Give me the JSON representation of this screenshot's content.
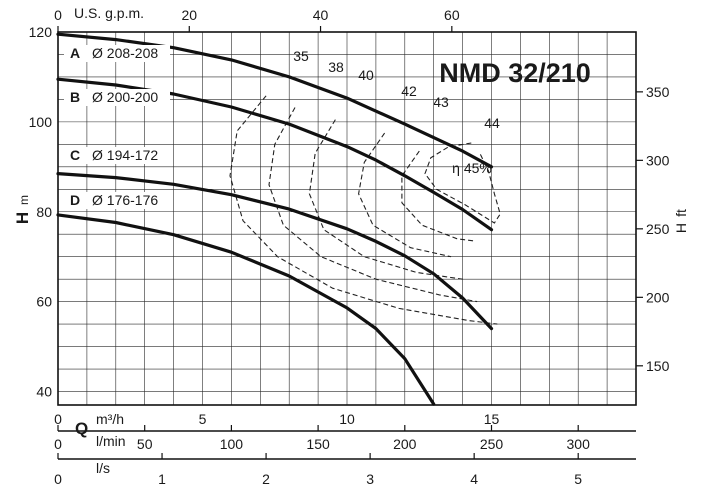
{
  "chart_data": {
    "type": "line",
    "title": "NMD 32/210",
    "axes": {
      "x_primary": {
        "label": "Q",
        "unit": "m³/h",
        "range": [
          0,
          20
        ],
        "ticks": [
          0,
          5,
          10,
          15
        ]
      },
      "y_left": {
        "label": "H",
        "unit": "m",
        "range": [
          37,
          120
        ],
        "ticks": [
          40,
          60,
          80,
          100,
          120
        ]
      },
      "y_right": {
        "label": "H",
        "unit": "ft",
        "ticks": [
          150,
          200,
          250,
          300,
          350
        ]
      },
      "x_top": {
        "label": "U.S. g.p.m.",
        "ticks": [
          0,
          20,
          40,
          60
        ]
      },
      "x_lmin": {
        "label": "l/min",
        "ticks": [
          0,
          50,
          100,
          150,
          200,
          250,
          300
        ]
      },
      "x_ls": {
        "label": "l/s",
        "ticks": [
          0,
          1,
          2,
          3,
          4,
          5
        ]
      }
    },
    "grid": true,
    "series": [
      {
        "name": "A",
        "diameter": "Ø 208-208",
        "x": [
          0,
          2,
          4,
          6,
          8,
          10,
          12,
          14,
          15
        ],
        "y": [
          119.5,
          118.3,
          116.5,
          113.8,
          110,
          105.3,
          99.5,
          93.5,
          90
        ]
      },
      {
        "name": "B",
        "diameter": "Ø 200-200",
        "x": [
          0,
          2,
          4,
          6,
          8,
          10,
          11,
          12,
          13,
          14,
          15
        ],
        "y": [
          109.5,
          108.2,
          106.2,
          103.3,
          99.5,
          94.5,
          91.5,
          88,
          84.3,
          80.5,
          76
        ]
      },
      {
        "name": "C",
        "diameter": "Ø 194-172",
        "x": [
          0,
          2,
          4,
          6,
          8,
          10,
          11,
          12,
          13,
          14,
          15
        ],
        "y": [
          88.5,
          87.6,
          86.1,
          83.8,
          80.6,
          76.2,
          73.4,
          70.2,
          66.2,
          60.8,
          54
        ]
      },
      {
        "name": "D",
        "diameter": "Ø 176-176",
        "x": [
          0,
          2,
          4,
          6,
          8,
          10,
          11,
          12,
          13
        ],
        "y": [
          79.3,
          77.6,
          74.9,
          71,
          65.7,
          58.6,
          54,
          47.3,
          37.2
        ]
      }
    ],
    "efficiency_labels": [
      "35",
      "38",
      "40",
      "42",
      "43",
      "44",
      "η 45%"
    ]
  }
}
